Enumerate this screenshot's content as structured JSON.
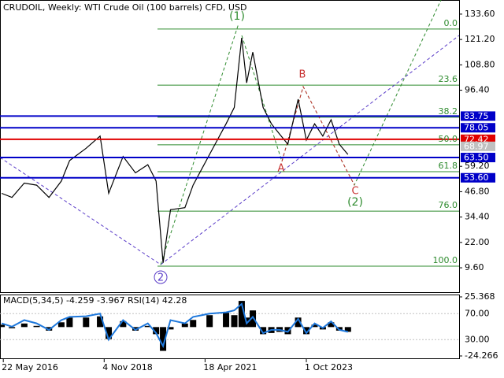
{
  "chart_data": {
    "type": "line",
    "title": "CRUDOIL, Weekly:  WTI Crude Oil (100 barrels) CFD, USD",
    "x": [
      2016.35,
      2016.6,
      2016.9,
      2017.2,
      2017.5,
      2017.8,
      2018.0,
      2018.4,
      2018.74,
      2018.95,
      2019.3,
      2019.6,
      2019.9,
      2020.1,
      2020.27,
      2020.45,
      2020.8,
      2021.0,
      2021.4,
      2021.8,
      2022.0,
      2022.18,
      2022.3,
      2022.45,
      2022.7,
      2022.9,
      2023.1,
      2023.3,
      2023.55,
      2023.75,
      2023.95,
      2024.15,
      2024.35,
      2024.55,
      2024.76
    ],
    "series": [
      {
        "name": "CRUDOIL",
        "color": "#000000",
        "values": [
          46,
          44,
          51,
          50,
          44,
          52,
          62,
          68,
          74,
          46,
          64,
          56,
          60,
          52,
          12,
          38,
          39,
          50,
          65,
          80,
          88,
          122,
          100,
          115,
          88,
          80,
          75,
          70,
          92,
          72,
          80,
          74,
          82,
          70,
          65
        ]
      }
    ],
    "xlim": [
      2016.31,
      2027.46
    ],
    "xticks": [
      {
        "value": 2016.39,
        "label": "22 May 2016"
      },
      {
        "value": 2018.84,
        "label": "4 Nov 2018"
      },
      {
        "value": 2021.29,
        "label": "18 Apr 2021"
      },
      {
        "value": 2023.75,
        "label": "1 Oct 2023"
      }
    ],
    "ylim": [
      -2.7,
      140.5
    ],
    "yticks": [
      {
        "value": 9.6,
        "label": "9.60"
      },
      {
        "value": 22,
        "label": "22.00"
      },
      {
        "value": 34.4,
        "label": "34.40"
      },
      {
        "value": 46.8,
        "label": "46.80"
      },
      {
        "value": 59.2,
        "label": "59.20"
      },
      {
        "value": 96.4,
        "label": "96.40"
      },
      {
        "value": 108.8,
        "label": "108.80"
      },
      {
        "value": 121.2,
        "label": "121.20"
      },
      {
        "value": 133.6,
        "label": "133.60"
      }
    ],
    "current_price": {
      "value": 68.97,
      "label": "68.97"
    },
    "levels": [
      {
        "value": 83.75,
        "label": "83.75",
        "color": "#0000c8"
      },
      {
        "value": 78.05,
        "label": "78.05",
        "color": "#0000c8"
      },
      {
        "value": 72.42,
        "label": "72.42",
        "color": "#e00000"
      },
      {
        "value": 63.5,
        "label": "63.50",
        "color": "#0000c8"
      },
      {
        "value": 53.6,
        "label": "53.60",
        "color": "#0000c8"
      }
    ],
    "fib_levels": [
      {
        "label": "0.0",
        "value": 126.3
      },
      {
        "label": "23.6",
        "value": 98.9
      },
      {
        "label": "38.2",
        "value": 83.2
      },
      {
        "label": "50.0",
        "value": 69.7
      },
      {
        "label": "61.8",
        "value": 56.6
      },
      {
        "label": "76.0",
        "value": 37.3
      },
      {
        "label": "100.0",
        "value": 10.4
      }
    ],
    "fib_color": "#2e8b2e",
    "wave_labels": [
      "(1)",
      "B",
      "A",
      "C",
      "(2)",
      "2"
    ],
    "indicator": {
      "title": "MACD(5,34,5) -4.259 -3.967 RSI(14) 42.28",
      "macd": [
        2,
        -1,
        3,
        1,
        -3,
        4,
        8,
        8,
        9,
        -10,
        5,
        -3,
        1,
        -6,
        -20,
        -2,
        3,
        6,
        10,
        12,
        10,
        22,
        8,
        14,
        -6,
        -5,
        -4,
        -6,
        8,
        -6,
        2,
        -2,
        4,
        -3,
        -4
      ],
      "macd_ylim": [
        -24.266,
        25.368
      ],
      "macd_ticks": [
        25.368,
        -24.266
      ],
      "rsi": [
        55,
        50,
        60,
        55,
        45,
        60,
        65,
        66,
        70,
        30,
        60,
        45,
        55,
        40,
        20,
        60,
        55,
        65,
        70,
        72,
        75,
        85,
        55,
        65,
        40,
        45,
        45,
        42,
        62,
        40,
        55,
        48,
        58,
        45,
        42
      ],
      "rsi_color": "#1e78dc",
      "rsi_ylim": [
        0,
        100
      ],
      "rsi_ticks": [
        {
          "value": 70,
          "label": "70.00"
        },
        {
          "value": 30,
          "label": "30.00"
        }
      ]
    }
  }
}
